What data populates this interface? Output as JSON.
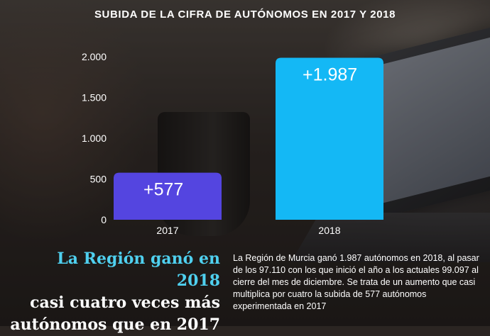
{
  "chart_data": {
    "type": "bar",
    "title": "SUBIDA DE LA CIFRA DE AUTÓNOMOS EN 2017 Y 2018",
    "categories": [
      "2017",
      "2018"
    ],
    "values": [
      577,
      1987
    ],
    "data_labels": [
      "+577",
      "+1.987"
    ],
    "bar_colors": [
      "#5445e0",
      "#14b8f5"
    ],
    "ylim": [
      0,
      2000
    ],
    "yticks": [
      0,
      500,
      1000,
      1500,
      2000
    ],
    "ytick_labels": [
      "0",
      "500",
      "1.000",
      "1.500",
      "2.000"
    ],
    "xlabel": "",
    "ylabel": "",
    "grid": false
  },
  "headline": {
    "part1": "La Región ganó en 2018",
    "part2": "casi cuatro veces más autónomos que en 2017"
  },
  "body": "La Región de Murcia ganó 1.987 autónomos en 2018, al pasar de los 97.110 con los que inició el año a los actuales 99.097 al cierre del mes de diciembre. Se trata de un aumento que casi multiplica por cuatro la subida de 577 autónomos experimentada en 2017",
  "colors": {
    "accent": "#4fd0ef",
    "text": "#ffffff"
  }
}
